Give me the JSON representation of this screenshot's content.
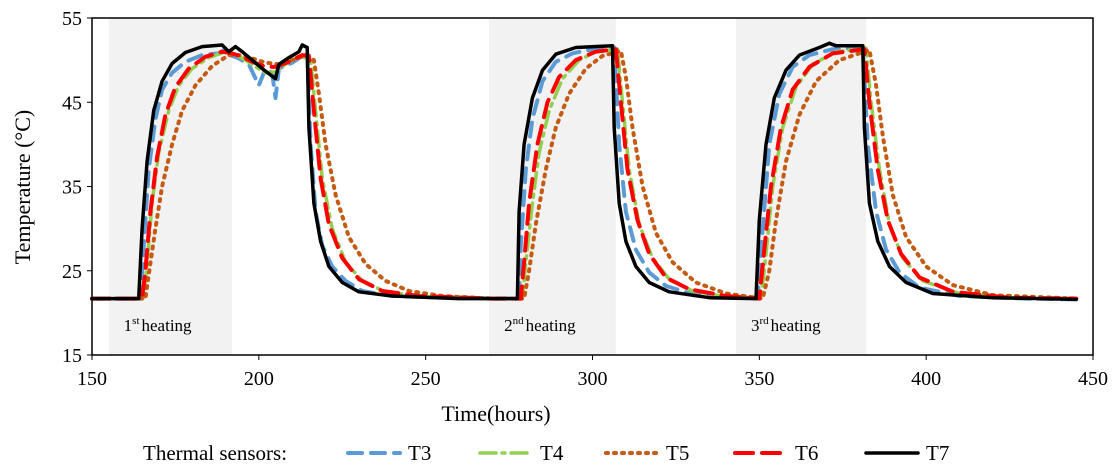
{
  "chart_data": {
    "type": "line",
    "title": "",
    "xlabel": "Time(hours)",
    "ylabel": "Temperature (°C)",
    "xlim": [
      150,
      450
    ],
    "ylim": [
      15,
      55
    ],
    "x_ticks": [
      150,
      200,
      250,
      300,
      350,
      400,
      450
    ],
    "y_ticks": [
      15,
      25,
      35,
      45,
      55
    ],
    "grid": false,
    "legend_title": "Thermal sensors:",
    "legend_position": "bottom",
    "shaded_periods": [
      {
        "x_start": 155,
        "x_end": 192,
        "label_base": "1",
        "label_sup": "st",
        "label_rest": "heating"
      },
      {
        "x_start": 269,
        "x_end": 307,
        "label_base": "2",
        "label_sup": "nd",
        "label_rest": "heating"
      },
      {
        "x_start": 343,
        "x_end": 382,
        "label_base": "3",
        "label_sup": "rd",
        "label_rest": "heating"
      }
    ],
    "series": [
      {
        "name": "T3",
        "color": "#5b9bd5",
        "dash": "14,9",
        "width": 4,
        "points": [
          [
            150,
            21.7
          ],
          [
            164.5,
            21.7
          ],
          [
            165.5,
            28
          ],
          [
            167,
            37
          ],
          [
            169,
            43
          ],
          [
            171,
            46.5
          ],
          [
            174,
            48.5
          ],
          [
            178,
            49.8
          ],
          [
            183,
            50.6
          ],
          [
            188,
            50.8
          ],
          [
            190,
            51.3
          ],
          [
            192,
            50.5
          ],
          [
            194,
            50.2
          ],
          [
            197,
            49.5
          ],
          [
            200,
            47
          ],
          [
            202,
            49
          ],
          [
            204,
            48.5
          ],
          [
            205,
            45.5
          ],
          [
            206,
            49
          ],
          [
            210,
            49.7
          ],
          [
            213,
            50.5
          ],
          [
            214.5,
            51
          ],
          [
            215.5,
            40
          ],
          [
            217,
            32
          ],
          [
            219,
            28
          ],
          [
            222,
            25.5
          ],
          [
            226,
            23.8
          ],
          [
            231,
            22.6
          ],
          [
            240,
            22
          ],
          [
            255,
            21.8
          ],
          [
            278,
            21.7
          ],
          [
            278.5,
            28
          ],
          [
            280,
            37
          ],
          [
            282,
            43
          ],
          [
            285,
            47.5
          ],
          [
            289,
            49.8
          ],
          [
            294,
            50.8
          ],
          [
            300,
            51.3
          ],
          [
            306.5,
            51.5
          ],
          [
            308,
            40
          ],
          [
            310,
            32
          ],
          [
            313,
            27.5
          ],
          [
            317,
            24.8
          ],
          [
            322,
            23.2
          ],
          [
            330,
            22.2
          ],
          [
            349.5,
            21.7
          ],
          [
            351,
            30
          ],
          [
            353,
            40
          ],
          [
            356,
            46
          ],
          [
            360,
            49.2
          ],
          [
            365,
            50.6
          ],
          [
            372,
            51.3
          ],
          [
            381,
            51.5
          ],
          [
            382.5,
            40
          ],
          [
            385,
            32
          ],
          [
            388,
            27.5
          ],
          [
            392,
            24.8
          ],
          [
            398,
            23
          ],
          [
            410,
            22
          ],
          [
            430,
            21.7
          ],
          [
            445,
            21.6
          ]
        ]
      },
      {
        "name": "T4",
        "color": "#92d050",
        "dash": "16,6,3,6",
        "width": 3.5,
        "points": [
          [
            150,
            21.7
          ],
          [
            165.5,
            21.7
          ],
          [
            166.5,
            26
          ],
          [
            168,
            33
          ],
          [
            170,
            39
          ],
          [
            173,
            44
          ],
          [
            176,
            47
          ],
          [
            180,
            49
          ],
          [
            185,
            50.3
          ],
          [
            190,
            51
          ],
          [
            193,
            50.6
          ],
          [
            196,
            50
          ],
          [
            199,
            49.2
          ],
          [
            202,
            48.5
          ],
          [
            205,
            48.6
          ],
          [
            208,
            49.5
          ],
          [
            212,
            50.4
          ],
          [
            215.5,
            50.2
          ],
          [
            217,
            44
          ],
          [
            219,
            36
          ],
          [
            222,
            30
          ],
          [
            226,
            26
          ],
          [
            231,
            23.8
          ],
          [
            238,
            22.5
          ],
          [
            250,
            21.9
          ],
          [
            270,
            21.7
          ],
          [
            279,
            21.7
          ],
          [
            280,
            26
          ],
          [
            282,
            33
          ],
          [
            284,
            39
          ],
          [
            287,
            44
          ],
          [
            291,
            47.8
          ],
          [
            296,
            50
          ],
          [
            301,
            51
          ],
          [
            307.5,
            51.3
          ],
          [
            309,
            45
          ],
          [
            311,
            37
          ],
          [
            314,
            30.5
          ],
          [
            318,
            26.5
          ],
          [
            323,
            24
          ],
          [
            330,
            22.6
          ],
          [
            340,
            21.9
          ],
          [
            350.5,
            21.7
          ],
          [
            352,
            27
          ],
          [
            354,
            35
          ],
          [
            357,
            42
          ],
          [
            361,
            46.8
          ],
          [
            366,
            49.5
          ],
          [
            373,
            51
          ],
          [
            382,
            51.4
          ],
          [
            383.5,
            45
          ],
          [
            386,
            37
          ],
          [
            389,
            30.5
          ],
          [
            393,
            26.5
          ],
          [
            399,
            23.8
          ],
          [
            410,
            22.3
          ],
          [
            425,
            21.8
          ],
          [
            445,
            21.7
          ]
        ]
      },
      {
        "name": "T5",
        "color": "#c55a11",
        "dash": "2,6",
        "width": 4,
        "points": [
          [
            150,
            21.7
          ],
          [
            166,
            21.7
          ],
          [
            167,
            24.5
          ],
          [
            169,
            30
          ],
          [
            171,
            35
          ],
          [
            174,
            40
          ],
          [
            177,
            44
          ],
          [
            181,
            47
          ],
          [
            186,
            49.3
          ],
          [
            191,
            50.6
          ],
          [
            194,
            50.6
          ],
          [
            198,
            50.2
          ],
          [
            202,
            49.7
          ],
          [
            206,
            49.5
          ],
          [
            210,
            50
          ],
          [
            214,
            50.6
          ],
          [
            216.5,
            50
          ],
          [
            218,
            46
          ],
          [
            220,
            40
          ],
          [
            223,
            34
          ],
          [
            227,
            29
          ],
          [
            232,
            25.8
          ],
          [
            238,
            23.8
          ],
          [
            245,
            22.6
          ],
          [
            255,
            22
          ],
          [
            270,
            21.7
          ],
          [
            279.5,
            21.7
          ],
          [
            281,
            25
          ],
          [
            283,
            30.5
          ],
          [
            286,
            37
          ],
          [
            289,
            42
          ],
          [
            293,
            46
          ],
          [
            298,
            49
          ],
          [
            303,
            50.5
          ],
          [
            308.5,
            51.1
          ],
          [
            310,
            48
          ],
          [
            312,
            42
          ],
          [
            315,
            35
          ],
          [
            319,
            29.5
          ],
          [
            324,
            26
          ],
          [
            331,
            23.6
          ],
          [
            340,
            22.3
          ],
          [
            351,
            21.7
          ],
          [
            353,
            25
          ],
          [
            355,
            31
          ],
          [
            358,
            38
          ],
          [
            362,
            43.5
          ],
          [
            367,
            47.5
          ],
          [
            374,
            50
          ],
          [
            383,
            51.2
          ],
          [
            385,
            47
          ],
          [
            387,
            41
          ],
          [
            390,
            34
          ],
          [
            394,
            29
          ],
          [
            400,
            25.5
          ],
          [
            408,
            23.3
          ],
          [
            420,
            22.1
          ],
          [
            445,
            21.7
          ]
        ]
      },
      {
        "name": "T6",
        "color": "#ff0000",
        "dash": "18,9",
        "width": 4,
        "points": [
          [
            150,
            21.7
          ],
          [
            165,
            21.7
          ],
          [
            166,
            25
          ],
          [
            167.5,
            32
          ],
          [
            169.5,
            38.5
          ],
          [
            172,
            43.5
          ],
          [
            175,
            46.8
          ],
          [
            179,
            49
          ],
          [
            184,
            50.4
          ],
          [
            189,
            51
          ],
          [
            192,
            50.8
          ],
          [
            195,
            50.4
          ],
          [
            198,
            49.8
          ],
          [
            202,
            49.2
          ],
          [
            205,
            49.2
          ],
          [
            209,
            49.8
          ],
          [
            213,
            50.6
          ],
          [
            215,
            50.5
          ],
          [
            216.5,
            44
          ],
          [
            218.5,
            36
          ],
          [
            221,
            30.5
          ],
          [
            225,
            26.5
          ],
          [
            230,
            24
          ],
          [
            237,
            22.6
          ],
          [
            248,
            22
          ],
          [
            270,
            21.7
          ],
          [
            278.5,
            21.7
          ],
          [
            279.5,
            26
          ],
          [
            281,
            33
          ],
          [
            283.5,
            40
          ],
          [
            286.5,
            45
          ],
          [
            290,
            48
          ],
          [
            295,
            50
          ],
          [
            301,
            51
          ],
          [
            307,
            51.3
          ],
          [
            308.5,
            45
          ],
          [
            310.5,
            37
          ],
          [
            313.5,
            31
          ],
          [
            317,
            27
          ],
          [
            322,
            24.2
          ],
          [
            329,
            22.8
          ],
          [
            340,
            22
          ],
          [
            350,
            21.7
          ],
          [
            351.5,
            27.5
          ],
          [
            353.5,
            35
          ],
          [
            356.5,
            42
          ],
          [
            360,
            46.5
          ],
          [
            365,
            49.2
          ],
          [
            372,
            50.8
          ],
          [
            381.5,
            51.3
          ],
          [
            383,
            45
          ],
          [
            385.5,
            37
          ],
          [
            388.5,
            31
          ],
          [
            392.5,
            27
          ],
          [
            398,
            24.2
          ],
          [
            408,
            22.5
          ],
          [
            425,
            21.8
          ],
          [
            445,
            21.7
          ]
        ]
      },
      {
        "name": "T7",
        "color": "#000000",
        "dash": "",
        "width": 3.5,
        "points": [
          [
            150,
            21.7
          ],
          [
            164,
            21.7
          ],
          [
            165,
            30
          ],
          [
            166.5,
            38
          ],
          [
            168.5,
            44
          ],
          [
            171,
            47.5
          ],
          [
            174,
            49.6
          ],
          [
            178,
            50.9
          ],
          [
            183,
            51.6
          ],
          [
            189,
            51.8
          ],
          [
            191,
            51
          ],
          [
            193,
            51.6
          ],
          [
            195,
            51
          ],
          [
            198,
            50
          ],
          [
            201,
            49
          ],
          [
            205,
            47.8
          ],
          [
            206,
            49.5
          ],
          [
            209,
            50.3
          ],
          [
            212,
            51
          ],
          [
            213,
            51.8
          ],
          [
            214.5,
            51.5
          ],
          [
            215,
            42
          ],
          [
            216.5,
            33
          ],
          [
            218.5,
            28.5
          ],
          [
            221,
            25.5
          ],
          [
            225,
            23.6
          ],
          [
            230,
            22.5
          ],
          [
            240,
            22
          ],
          [
            260,
            21.7
          ],
          [
            277.5,
            21.7
          ],
          [
            278,
            32
          ],
          [
            279.5,
            40
          ],
          [
            282,
            45.5
          ],
          [
            285,
            48.8
          ],
          [
            289,
            50.7
          ],
          [
            295,
            51.5
          ],
          [
            306,
            51.7
          ],
          [
            306.5,
            42
          ],
          [
            308,
            33
          ],
          [
            310,
            28.5
          ],
          [
            313,
            25.5
          ],
          [
            317,
            23.6
          ],
          [
            323,
            22.5
          ],
          [
            335,
            21.8
          ],
          [
            349,
            21.7
          ],
          [
            350,
            31
          ],
          [
            352,
            40
          ],
          [
            354.5,
            45.5
          ],
          [
            358,
            48.8
          ],
          [
            362,
            50.6
          ],
          [
            368,
            51.5
          ],
          [
            371,
            52
          ],
          [
            373,
            51.7
          ],
          [
            381,
            51.7
          ],
          [
            381.5,
            42
          ],
          [
            383,
            33
          ],
          [
            385.5,
            28.5
          ],
          [
            389,
            25.5
          ],
          [
            394,
            23.6
          ],
          [
            402,
            22.3
          ],
          [
            420,
            21.8
          ],
          [
            445,
            21.6
          ]
        ]
      }
    ]
  }
}
